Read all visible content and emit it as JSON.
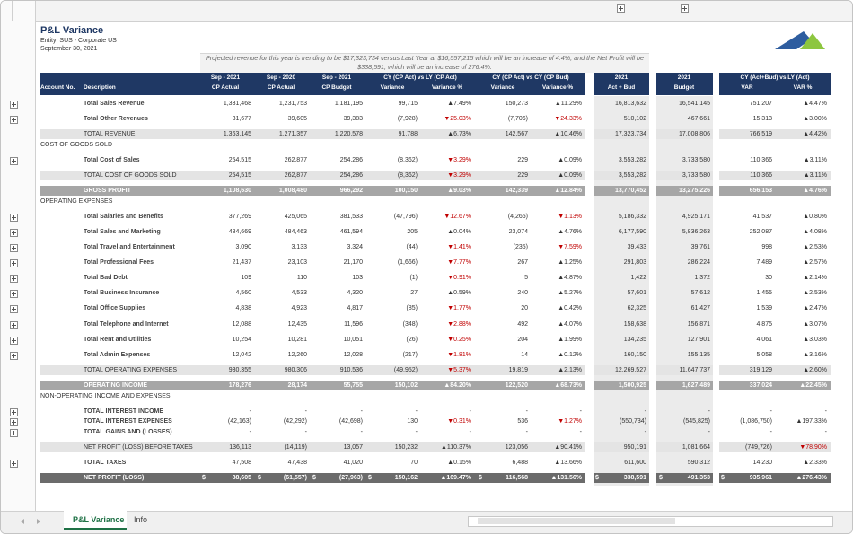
{
  "header": {
    "title": "P&L Variance",
    "entity": "Entity: SUS - Corporate US",
    "date": "September 30, 2021"
  },
  "note": "Projected revenue for this year is trending to be $17,323,734 versus Last Year at $16,557,215 which will be  an increase of 4.4%, and the Net Profit will be $338,591, which will be an increase of 276.4%.",
  "table": {
    "group_headers": [
      "Sep - 2021",
      "Sep - 2020",
      "Sep - 2021",
      "CY (CP Act) vs LY (CP Act)",
      "CY (CP Act) vs CY (CP Bud)",
      "2021",
      "2021",
      "CY (Act+Bud) vs LY (Act)"
    ],
    "columns": [
      "Account No.",
      "Description",
      "CP Actual",
      "CP Actual",
      "CP Budget",
      "Variance",
      "Variance %",
      "Variance",
      "Variance %",
      "Act + Bud",
      "Budget",
      "VAR",
      "VAR %"
    ],
    "rows": [
      {
        "kind": "item",
        "label": "Total Sales Revenue",
        "values": [
          "1,331,468",
          "1,231,753",
          "1,181,195",
          "99,715",
          "▲7.49%",
          "150,273",
          "▲11.29%",
          "16,813,632",
          "16,541,145",
          "751,207",
          "▲4.47%"
        ]
      },
      {
        "kind": "item",
        "label": "Total Other Revenues",
        "values": [
          "31,677",
          "39,605",
          "39,383",
          "(7,928)",
          "▼25.03%",
          "(7,706)",
          "▼24.33%",
          "510,102",
          "467,661",
          "15,313",
          "▲3.00%"
        ]
      },
      {
        "kind": "total",
        "label": "TOTAL REVENUE",
        "values": [
          "1,363,145",
          "1,271,357",
          "1,220,578",
          "91,788",
          "▲6.73%",
          "142,567",
          "▲10.46%",
          "17,323,734",
          "17,008,806",
          "766,519",
          "▲4.42%"
        ]
      },
      {
        "kind": "section",
        "label": "COST OF GOODS SOLD"
      },
      {
        "kind": "item",
        "label": "Total Cost of Sales",
        "values": [
          "254,515",
          "262,877",
          "254,286",
          "(8,362)",
          "▼3.29%",
          "229",
          "▲0.09%",
          "3,553,282",
          "3,733,580",
          "110,366",
          "▲3.11%"
        ]
      },
      {
        "kind": "total",
        "label": "TOTAL COST OF GOODS SOLD",
        "values": [
          "254,515",
          "262,877",
          "254,286",
          "(8,362)",
          "▼3.29%",
          "229",
          "▲0.09%",
          "3,553,282",
          "3,733,580",
          "110,366",
          "▲3.11%"
        ]
      },
      {
        "kind": "band",
        "label": "GROSS PROFIT",
        "values": [
          "1,108,630",
          "1,008,480",
          "966,292",
          "100,150",
          "▲9.03%",
          "142,339",
          "▲12.84%",
          "13,770,452",
          "13,275,226",
          "656,153",
          "▲4.76%"
        ]
      },
      {
        "kind": "section",
        "label": "OPERATING EXPENSES"
      },
      {
        "kind": "item",
        "label": "Total Salaries and Benefits",
        "values": [
          "377,269",
          "425,065",
          "381,533",
          "(47,796)",
          "▼12.67%",
          "(4,265)",
          "▼1.13%",
          "5,186,332",
          "4,925,171",
          "41,537",
          "▲0.80%"
        ]
      },
      {
        "kind": "item",
        "label": "Total Sales and Marketing",
        "values": [
          "484,669",
          "484,463",
          "461,594",
          "205",
          "▲0.04%",
          "23,074",
          "▲4.76%",
          "6,177,590",
          "5,836,263",
          "252,087",
          "▲4.08%"
        ]
      },
      {
        "kind": "item",
        "label": "Total Travel and Entertainment",
        "values": [
          "3,090",
          "3,133",
          "3,324",
          "(44)",
          "▼1.41%",
          "(235)",
          "▼7.59%",
          "39,433",
          "39,761",
          "998",
          "▲2.53%"
        ]
      },
      {
        "kind": "item",
        "label": "Total Professional Fees",
        "values": [
          "21,437",
          "23,103",
          "21,170",
          "(1,666)",
          "▼7.77%",
          "267",
          "▲1.25%",
          "291,803",
          "286,224",
          "7,489",
          "▲2.57%"
        ]
      },
      {
        "kind": "item",
        "label": "Total Bad Debt",
        "values": [
          "109",
          "110",
          "103",
          "(1)",
          "▼0.91%",
          "5",
          "▲4.87%",
          "1,422",
          "1,372",
          "30",
          "▲2.14%"
        ]
      },
      {
        "kind": "item",
        "label": "Total Business Insurance",
        "values": [
          "4,560",
          "4,533",
          "4,320",
          "27",
          "▲0.59%",
          "240",
          "▲5.27%",
          "57,601",
          "57,612",
          "1,455",
          "▲2.53%"
        ]
      },
      {
        "kind": "item",
        "label": "Total Office Supplies",
        "values": [
          "4,838",
          "4,923",
          "4,817",
          "(85)",
          "▼1.77%",
          "20",
          "▲0.42%",
          "62,325",
          "61,427",
          "1,539",
          "▲2.47%"
        ]
      },
      {
        "kind": "item",
        "label": "Total Telephone and Internet",
        "values": [
          "12,088",
          "12,435",
          "11,596",
          "(348)",
          "▼2.88%",
          "492",
          "▲4.07%",
          "158,638",
          "156,871",
          "4,875",
          "▲3.07%"
        ]
      },
      {
        "kind": "item",
        "label": "Total Rent and Utilities",
        "values": [
          "10,254",
          "10,281",
          "10,051",
          "(26)",
          "▼0.25%",
          "204",
          "▲1.99%",
          "134,235",
          "127,901",
          "4,061",
          "▲3.03%"
        ]
      },
      {
        "kind": "item",
        "label": "Total Admin Expenses",
        "values": [
          "12,042",
          "12,260",
          "12,028",
          "(217)",
          "▼1.81%",
          "14",
          "▲0.12%",
          "160,150",
          "155,135",
          "5,058",
          "▲3.16%"
        ]
      },
      {
        "kind": "total",
        "label": "TOTAL OPERATING EXPENSES",
        "values": [
          "930,355",
          "980,306",
          "910,536",
          "(49,952)",
          "▼5.37%",
          "19,819",
          "▲2.13%",
          "12,269,527",
          "11,647,737",
          "319,129",
          "▲2.60%"
        ]
      },
      {
        "kind": "band",
        "label": "OPERATING INCOME",
        "values": [
          "178,276",
          "28,174",
          "55,755",
          "150,102",
          "▲84.20%",
          "122,520",
          "▲68.73%",
          "1,500,925",
          "1,627,489",
          "337,024",
          "▲22.45%"
        ]
      },
      {
        "kind": "section",
        "label": "NON-OPERATING INCOME AND EXPENSES"
      },
      {
        "kind": "item",
        "label": "TOTAL INTEREST INCOME",
        "values": [
          "-",
          "-",
          "-",
          "-",
          "-",
          "-",
          "-",
          "-",
          "-",
          "-",
          "-"
        ]
      },
      {
        "kind": "item",
        "label": "TOTAL INTEREST EXPENSES",
        "values": [
          "(42,163)",
          "(42,292)",
          "(42,698)",
          "130",
          "▼0.31%",
          "536",
          "▼1.27%",
          "(550,734)",
          "(545,825)",
          "(1,086,750)",
          "▲197.33%"
        ]
      },
      {
        "kind": "item",
        "label": "TOTAL GAINS AND (LOSSES)",
        "values": [
          "-",
          "-",
          "-",
          "-",
          "-",
          "-",
          "-",
          "-",
          "-",
          "-",
          "-"
        ]
      },
      {
        "kind": "total",
        "label": "NET PROFIT (LOSS) BEFORE TAXES",
        "values": [
          "136,113",
          "(14,119)",
          "13,057",
          "150,232",
          "▲110.37%",
          "123,056",
          "▲90.41%",
          "950,191",
          "1,081,664",
          "(749,726)",
          "▼78.90%"
        ]
      },
      {
        "kind": "item",
        "label": "TOTAL TAXES",
        "values": [
          "47,508",
          "47,438",
          "41,020",
          "70",
          "▲0.15%",
          "6,488",
          "▲13.66%",
          "611,600",
          "590,312",
          "14,230",
          "▲2.33%"
        ]
      },
      {
        "kind": "net",
        "label": "NET PROFIT (LOSS)",
        "currency": "$",
        "values": [
          "88,605",
          "(61,557)",
          "(27,963)",
          "150,162",
          "▲169.47%",
          "116,568",
          "▲131.56%",
          "338,591",
          "491,353",
          "935,961",
          "▲276.43%"
        ]
      }
    ]
  },
  "tabs": [
    "P&L Variance",
    "Info"
  ]
}
